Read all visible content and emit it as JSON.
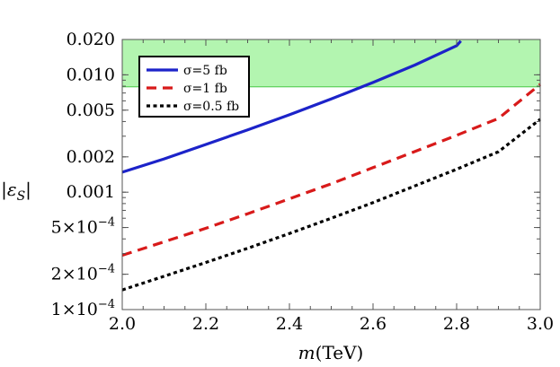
{
  "chart_data": {
    "type": "line",
    "xlabel": "m(TeV)",
    "ylabel": "|εS|",
    "xlim": [
      2.0,
      3.0
    ],
    "ylim": [
      0.0001,
      0.02
    ],
    "yscale": "log",
    "x_ticks": [
      {
        "value": 2.0,
        "label": "2.0"
      },
      {
        "value": 2.2,
        "label": "2.2"
      },
      {
        "value": 2.4,
        "label": "2.4"
      },
      {
        "value": 2.6,
        "label": "2.6"
      },
      {
        "value": 2.8,
        "label": "2.8"
      },
      {
        "value": 3.0,
        "label": "3.0"
      }
    ],
    "y_ticks": [
      {
        "value": 0.0001,
        "mantissa": "1",
        "exponent": "−4"
      },
      {
        "value": 0.0002,
        "mantissa": "2",
        "exponent": "−4"
      },
      {
        "value": 0.0005,
        "mantissa": "5",
        "exponent": "−4"
      },
      {
        "value": 0.001,
        "label": "0.001"
      },
      {
        "value": 0.002,
        "label": "0.002"
      },
      {
        "value": 0.005,
        "label": "0.005"
      },
      {
        "value": 0.01,
        "label": "0.010"
      },
      {
        "value": 0.02,
        "label": "0.020"
      }
    ],
    "band": {
      "y_min": 0.0079,
      "y_max": 0.02,
      "color": "#b3f5b0",
      "edge_color": "#46c846"
    },
    "legend_position": "top-left",
    "series": [
      {
        "name": "σ=5 fb",
        "color": "#1c23c9",
        "style": "solid",
        "x": [
          2.0,
          2.1,
          2.2,
          2.3,
          2.4,
          2.5,
          2.6,
          2.7,
          2.8,
          2.81
        ],
        "y": [
          0.00148,
          0.00192,
          0.00255,
          0.0034,
          0.00457,
          0.00623,
          0.0086,
          0.0121,
          0.0177,
          0.0194
        ]
      },
      {
        "name": "σ=1 fb",
        "color": "#d81a1a",
        "style": "dashed",
        "x": [
          2.0,
          2.1,
          2.2,
          2.3,
          2.4,
          2.5,
          2.6,
          2.7,
          2.8,
          2.9,
          3.0
        ],
        "y": [
          0.00029,
          0.000378,
          0.000493,
          0.000655,
          0.000877,
          0.00118,
          0.00162,
          0.00222,
          0.00305,
          0.00425,
          0.0083
        ]
      },
      {
        "name": "σ=0.5 fb",
        "color": "#000000",
        "style": "dotted",
        "x": [
          2.0,
          2.1,
          2.2,
          2.3,
          2.4,
          2.5,
          2.6,
          2.7,
          2.8,
          2.9,
          3.0
        ],
        "y": [
          0.000147,
          0.000192,
          0.000252,
          0.000333,
          0.000445,
          0.0006,
          0.000815,
          0.00113,
          0.00157,
          0.00221,
          0.00418
        ]
      }
    ]
  }
}
